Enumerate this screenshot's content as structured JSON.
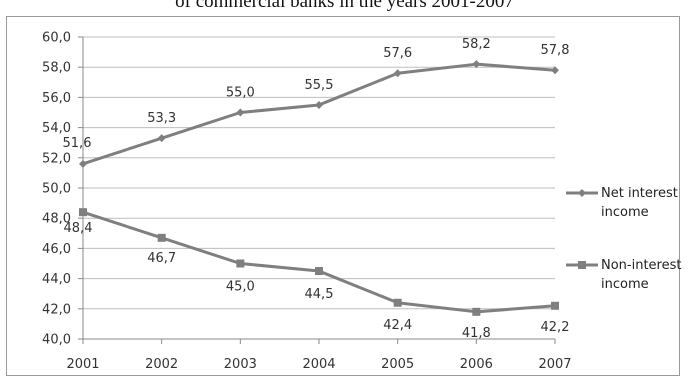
{
  "chart_data": {
    "type": "line",
    "title": "of commercial banks in the years 2001-2007",
    "xlabel": "",
    "ylabel": "",
    "categories": [
      "2001",
      "2002",
      "2003",
      "2004",
      "2005",
      "2006",
      "2007"
    ],
    "ylim": [
      40,
      60
    ],
    "yticks": [
      "40,0",
      "42,0",
      "44,0",
      "46,0",
      "48,0",
      "50,0",
      "52,0",
      "54,0",
      "56,0",
      "58,0",
      "60,0"
    ],
    "grid": true,
    "legend_position": "right",
    "series": [
      {
        "name": "Net interest income",
        "legend_lines": [
          "Net interest",
          "income"
        ],
        "marker": "diamond",
        "color": "#7f7f7f",
        "values": [
          51.6,
          53.3,
          55.0,
          55.5,
          57.6,
          58.2,
          57.8
        ],
        "labels": [
          "51,6",
          "53,3",
          "55,0",
          "55,5",
          "57,6",
          "58,2",
          "57,8"
        ]
      },
      {
        "name": "Non-interest income",
        "legend_lines": [
          "Non-interest",
          "income"
        ],
        "marker": "square",
        "color": "#7f7f7f",
        "values": [
          48.4,
          46.7,
          45.0,
          44.5,
          42.4,
          41.8,
          42.2
        ],
        "labels": [
          "48,4",
          "46,7",
          "45,0",
          "44,5",
          "42,4",
          "41,8",
          "42,2"
        ]
      }
    ]
  }
}
